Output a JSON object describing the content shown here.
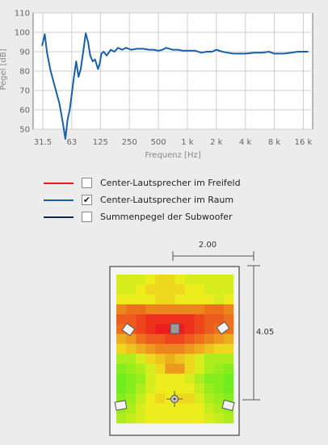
{
  "chart_data": {
    "type": "line",
    "xlabel": "Frequenz [Hz]",
    "ylabel": "Pegel [dB]",
    "ylim": [
      50,
      110
    ],
    "xscale": "log",
    "xlim": [
      25,
      20000
    ],
    "y_ticks": [
      "50",
      "60",
      "70",
      "80",
      "90",
      "100",
      "110"
    ],
    "x_ticks": [
      {
        "value": 31.5,
        "label": "31.5"
      },
      {
        "value": 63,
        "label": "63"
      },
      {
        "value": 125,
        "label": "125"
      },
      {
        "value": 250,
        "label": "250"
      },
      {
        "value": 500,
        "label": "500"
      },
      {
        "value": 1000,
        "label": "1 k"
      },
      {
        "value": 2000,
        "label": "2 k"
      },
      {
        "value": 4000,
        "label": "4 k"
      },
      {
        "value": 8000,
        "label": "8 k"
      },
      {
        "value": 16000,
        "label": "16 k"
      }
    ],
    "grid": true,
    "series": [
      {
        "name": "Center-Lautsprecher im Raum",
        "color": "#1a5fa8",
        "x": [
          31,
          33,
          35,
          38,
          42,
          47,
          51,
          54,
          57,
          60,
          63,
          66,
          70,
          74,
          78,
          84,
          88,
          93,
          98,
          104,
          110,
          118,
          123,
          128,
          135,
          145,
          160,
          175,
          190,
          210,
          230,
          260,
          300,
          350,
          400,
          450,
          500,
          550,
          600,
          700,
          800,
          900,
          1000,
          1200,
          1400,
          1600,
          1800,
          2000,
          2300,
          2600,
          3000,
          3500,
          4000,
          5000,
          6000,
          7000,
          8000,
          10000,
          12000,
          14000,
          16000,
          18000
        ],
        "values": [
          93,
          99,
          89,
          80,
          72,
          63,
          53,
          45,
          55,
          60,
          68,
          76,
          85,
          77,
          81,
          92,
          99.5,
          95,
          88,
          85,
          86,
          81,
          84,
          89,
          90,
          88,
          91,
          90,
          92,
          91,
          92,
          91,
          91.5,
          91.5,
          91,
          91,
          90.5,
          91,
          92,
          91,
          91,
          90.5,
          90.5,
          90.5,
          89.5,
          90,
          90,
          91,
          90,
          89.5,
          89,
          89,
          89,
          89.5,
          89.5,
          90,
          89,
          89,
          89.5,
          90,
          90,
          90
        ]
      }
    ]
  },
  "legend": [
    {
      "label": "Center-Lautsprecher im Freifeld",
      "color": "#e02020",
      "checked": false,
      "mark": ""
    },
    {
      "label": "Center-Lautsprecher im Raum",
      "color": "#1a5fa8",
      "checked": true,
      "mark": "✔"
    },
    {
      "label": "Summenpegel der Subwoofer",
      "color": "#0e2c55",
      "checked": false,
      "mark": ""
    }
  ],
  "room": {
    "width_label": "2.00",
    "depth_label": "4.05",
    "heatmap": [
      [
        0.45,
        0.45,
        0.45,
        0.5,
        0.55,
        0.55,
        0.5,
        0.45,
        0.45,
        0.45,
        0.45,
        0.45
      ],
      [
        0.45,
        0.45,
        0.5,
        0.55,
        0.55,
        0.55,
        0.55,
        0.5,
        0.5,
        0.45,
        0.45,
        0.45
      ],
      [
        0.5,
        0.5,
        0.5,
        0.5,
        0.55,
        0.55,
        0.5,
        0.5,
        0.5,
        0.5,
        0.45,
        0.5
      ],
      [
        0.75,
        0.8,
        0.8,
        0.75,
        0.75,
        0.75,
        0.75,
        0.75,
        0.75,
        0.8,
        0.8,
        0.75
      ],
      [
        0.85,
        0.85,
        0.9,
        0.95,
        0.95,
        0.95,
        0.95,
        0.95,
        0.9,
        0.85,
        0.85,
        0.8
      ],
      [
        0.8,
        0.85,
        0.9,
        0.95,
        1.0,
        1.0,
        1.0,
        0.95,
        0.9,
        0.85,
        0.8,
        0.8
      ],
      [
        0.65,
        0.7,
        0.8,
        0.85,
        0.85,
        0.9,
        0.9,
        0.85,
        0.8,
        0.75,
        0.7,
        0.65
      ],
      [
        0.55,
        0.6,
        0.65,
        0.7,
        0.75,
        0.75,
        0.75,
        0.7,
        0.65,
        0.6,
        0.55,
        0.55
      ],
      [
        0.35,
        0.35,
        0.45,
        0.55,
        0.6,
        0.65,
        0.6,
        0.55,
        0.45,
        0.35,
        0.35,
        0.35
      ],
      [
        0.25,
        0.3,
        0.35,
        0.45,
        0.55,
        0.7,
        0.7,
        0.55,
        0.45,
        0.35,
        0.3,
        0.25
      ],
      [
        0.2,
        0.25,
        0.3,
        0.45,
        0.5,
        0.5,
        0.5,
        0.45,
        0.35,
        0.25,
        0.25,
        0.2
      ],
      [
        0.2,
        0.25,
        0.35,
        0.45,
        0.5,
        0.5,
        0.5,
        0.5,
        0.4,
        0.3,
        0.25,
        0.2
      ],
      [
        0.25,
        0.3,
        0.4,
        0.5,
        0.55,
        0.5,
        0.55,
        0.55,
        0.45,
        0.35,
        0.3,
        0.25
      ],
      [
        0.3,
        0.35,
        0.45,
        0.5,
        0.5,
        0.5,
        0.5,
        0.5,
        0.5,
        0.4,
        0.35,
        0.3
      ],
      [
        0.35,
        0.4,
        0.45,
        0.5,
        0.5,
        0.5,
        0.5,
        0.5,
        0.5,
        0.45,
        0.4,
        0.35
      ]
    ]
  }
}
